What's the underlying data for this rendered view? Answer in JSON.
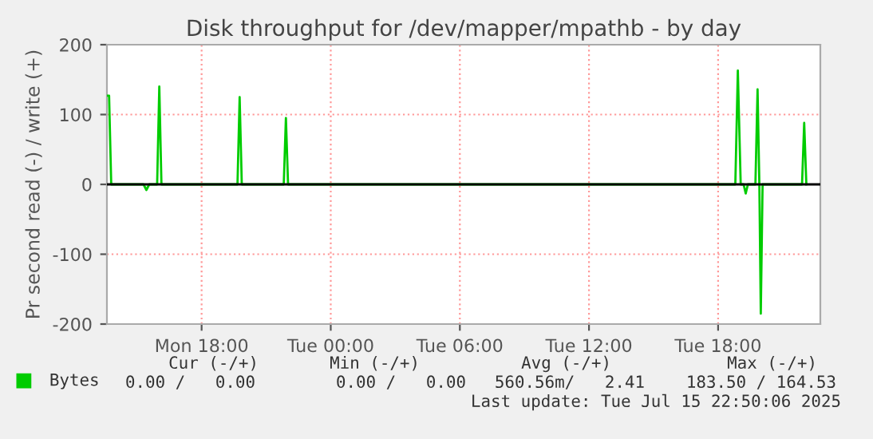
{
  "chart_data": {
    "type": "line",
    "title": "Disk throughput for /dev/mapper/mpathb - by day",
    "ylabel": "Pr second read (-) / write (+)",
    "x": [
      "2025-07-14T13:36",
      "2025-07-14T13:42",
      "2025-07-14T13:48",
      "2025-07-14T15:18",
      "2025-07-14T15:26",
      "2025-07-14T15:34",
      "2025-07-14T15:56",
      "2025-07-14T16:02",
      "2025-07-14T16:08",
      "2025-07-14T19:40",
      "2025-07-14T19:46",
      "2025-07-14T19:52",
      "2025-07-14T21:49",
      "2025-07-14T21:55",
      "2025-07-14T22:01",
      "2025-07-15T18:48",
      "2025-07-15T18:55",
      "2025-07-15T19:03",
      "2025-07-15T19:11",
      "2025-07-15T19:17",
      "2025-07-15T19:23",
      "2025-07-15T19:44",
      "2025-07-15T19:50",
      "2025-07-15T19:55",
      "2025-07-15T19:59",
      "2025-07-15T20:04",
      "2025-07-15T21:54",
      "2025-07-15T22:00",
      "2025-07-15T22:06"
    ],
    "series": [
      {
        "name": "Bytes",
        "color": "#00cc00",
        "values": [
          127,
          127,
          0,
          0,
          -8,
          0,
          0,
          140,
          0,
          0,
          125,
          0,
          0,
          95,
          0,
          0,
          163,
          0,
          0,
          -13,
          0,
          0,
          136,
          0,
          -185,
          0,
          0,
          88,
          0
        ]
      }
    ],
    "xlim": [
      "2025-07-14T13:36",
      "2025-07-15T22:45"
    ],
    "xticks": [
      {
        "value": "2025-07-14T18:00",
        "label": "Mon 18:00"
      },
      {
        "value": "2025-07-15T00:00",
        "label": "Tue 00:00"
      },
      {
        "value": "2025-07-15T06:00",
        "label": "Tue 06:00"
      },
      {
        "value": "2025-07-15T12:00",
        "label": "Tue 12:00"
      },
      {
        "value": "2025-07-15T18:00",
        "label": "Tue 18:00"
      }
    ],
    "ylim": [
      -200,
      200
    ],
    "yticks": [
      -200,
      -100,
      0,
      100,
      200
    ],
    "grid": true,
    "legend": "bottom",
    "ref_lines": [
      {
        "axis": "y",
        "value": 0,
        "color": "#000000"
      }
    ],
    "annotations": [
      "Cur (-/+)",
      "Min (-/+)",
      "Avg (-/+)",
      "Max (-/+)",
      "0.00 /   0.00",
      "0.00 /   0.00",
      "560.56m/   2.41",
      "183.50 / 164.53",
      "Last update: Tue Jul 15 22:50:06 2025"
    ]
  }
}
